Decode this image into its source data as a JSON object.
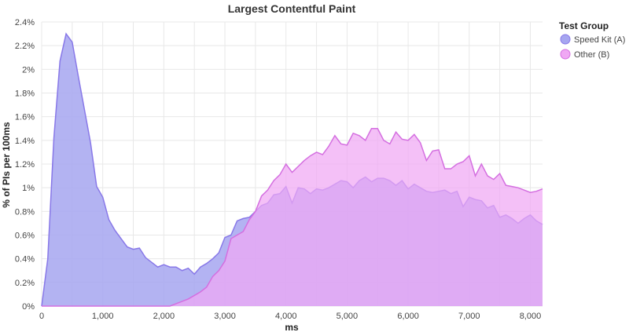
{
  "chart_data": {
    "type": "area",
    "title": "Largest Contentful Paint",
    "xlabel": "ms",
    "ylabel": "% of PIs per 100ms",
    "xlim": [
      0,
      8200
    ],
    "ylim": [
      0,
      2.4
    ],
    "x_ticks": [
      0,
      1000,
      2000,
      3000,
      4000,
      5000,
      6000,
      7000,
      8000
    ],
    "x_tick_labels": [
      "0",
      "1,000",
      "2,000",
      "3,000",
      "4,000",
      "5,000",
      "6,000",
      "7,000",
      "8,000"
    ],
    "y_ticks": [
      0,
      0.2,
      0.4,
      0.6,
      0.8,
      1,
      1.2,
      1.4,
      1.6,
      1.8,
      2,
      2.2,
      2.4
    ],
    "y_tick_labels": [
      "0%",
      "0.2%",
      "0.4%",
      "0.6%",
      "0.8%",
      "1%",
      "1.2%",
      "1.4%",
      "1.6%",
      "1.8%",
      "2%",
      "2.2%",
      "2.4%"
    ],
    "grid": true,
    "legend": {
      "title": "Test Group",
      "placement": "top-right"
    },
    "series": [
      {
        "name": "Speed Kit (A)",
        "fill": "#a6a6f0",
        "stroke": "#8878e8",
        "x": [
          0,
          100,
          200,
          300,
          400,
          500,
          600,
          700,
          800,
          900,
          1000,
          1100,
          1200,
          1300,
          1400,
          1500,
          1600,
          1700,
          1800,
          1900,
          2000,
          2100,
          2200,
          2300,
          2400,
          2500,
          2600,
          2700,
          2800,
          2900,
          3000,
          3100,
          3200,
          3300,
          3400,
          3500,
          3600,
          3700,
          3800,
          3900,
          4000,
          4100,
          4200,
          4300,
          4400,
          4500,
          4600,
          4700,
          4800,
          4900,
          5000,
          5100,
          5200,
          5300,
          5400,
          5500,
          5600,
          5700,
          5800,
          5900,
          6000,
          6100,
          6200,
          6300,
          6400,
          6500,
          6600,
          6700,
          6800,
          6900,
          7000,
          7100,
          7200,
          7300,
          7400,
          7500,
          7600,
          7700,
          7800,
          7900,
          8000,
          8100,
          8200
        ],
        "values": [
          0,
          0.4,
          1.42,
          2.07,
          2.3,
          2.23,
          1.94,
          1.66,
          1.38,
          1.01,
          0.92,
          0.73,
          0.64,
          0.57,
          0.5,
          0.48,
          0.49,
          0.41,
          0.37,
          0.33,
          0.35,
          0.33,
          0.33,
          0.3,
          0.32,
          0.27,
          0.33,
          0.36,
          0.4,
          0.45,
          0.58,
          0.6,
          0.72,
          0.74,
          0.75,
          0.8,
          0.85,
          0.87,
          0.94,
          0.95,
          1.01,
          0.87,
          1.0,
          0.99,
          0.95,
          0.99,
          0.98,
          1.0,
          1.03,
          1.06,
          1.05,
          1.0,
          1.06,
          1.09,
          1.05,
          1.08,
          1.08,
          1.06,
          1.02,
          1.06,
          0.99,
          1.03,
          1.0,
          0.97,
          0.96,
          0.97,
          0.98,
          0.95,
          0.97,
          0.84,
          0.92,
          0.9,
          0.89,
          0.83,
          0.85,
          0.75,
          0.77,
          0.74,
          0.7,
          0.74,
          0.77,
          0.72,
          0.69
        ]
      },
      {
        "name": "Other (B)",
        "fill": "#f0a8f4",
        "stroke": "#d46fe0",
        "x": [
          0,
          100,
          200,
          300,
          400,
          500,
          600,
          700,
          800,
          900,
          1000,
          1100,
          1200,
          1300,
          1400,
          1500,
          1600,
          1700,
          1800,
          1900,
          2000,
          2100,
          2200,
          2300,
          2400,
          2500,
          2600,
          2700,
          2800,
          2900,
          3000,
          3100,
          3200,
          3300,
          3400,
          3500,
          3600,
          3700,
          3800,
          3900,
          4000,
          4100,
          4200,
          4300,
          4400,
          4500,
          4600,
          4700,
          4800,
          4900,
          5000,
          5100,
          5200,
          5300,
          5400,
          5500,
          5600,
          5700,
          5800,
          5900,
          6000,
          6100,
          6200,
          6300,
          6400,
          6500,
          6600,
          6700,
          6800,
          6900,
          7000,
          7100,
          7200,
          7300,
          7400,
          7500,
          7600,
          7700,
          7800,
          7900,
          8000,
          8100,
          8200
        ],
        "values": [
          0,
          0,
          0,
          0,
          0,
          0,
          0,
          0,
          0,
          0,
          0,
          0,
          0,
          0,
          0,
          0,
          0,
          0,
          0,
          0,
          0,
          0,
          0.02,
          0.04,
          0.06,
          0.09,
          0.12,
          0.16,
          0.25,
          0.3,
          0.38,
          0.57,
          0.6,
          0.63,
          0.73,
          0.8,
          0.93,
          0.98,
          1.06,
          1.11,
          1.2,
          1.13,
          1.18,
          1.23,
          1.27,
          1.3,
          1.28,
          1.35,
          1.44,
          1.37,
          1.36,
          1.46,
          1.44,
          1.4,
          1.5,
          1.5,
          1.4,
          1.37,
          1.47,
          1.41,
          1.4,
          1.45,
          1.38,
          1.23,
          1.31,
          1.32,
          1.16,
          1.16,
          1.2,
          1.22,
          1.27,
          1.1,
          1.2,
          1.1,
          1.07,
          1.12,
          1.02,
          1.01,
          1.0,
          0.98,
          0.96,
          0.97,
          0.99
        ]
      }
    ]
  }
}
